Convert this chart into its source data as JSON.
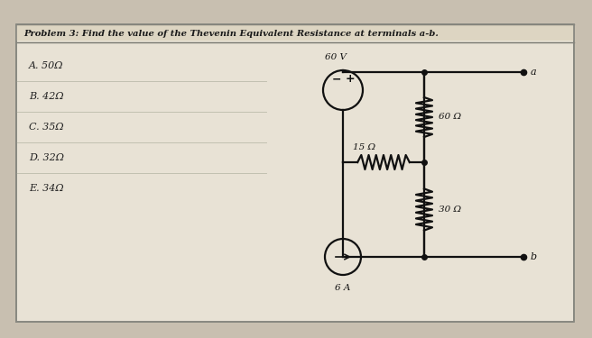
{
  "title": "Problem 3: Find the value of the Thevenin Equivalent Resistance at terminals a-b.",
  "choices": [
    "A. 50Ω",
    "B. 42Ω",
    "C. 35Ω",
    "D. 32Ω",
    "E. 34Ω"
  ],
  "bg_color": "#c8bfb0",
  "panel_color": "#ddd5c5",
  "circuit": {
    "voltage_source_60V": "60 V",
    "current_source_6A": "6 A",
    "R1": "60 Ω",
    "R2": "15 Ω",
    "R3": "30 Ω",
    "terminal_a": "a",
    "terminal_b": "b"
  },
  "line_color": "#111111",
  "title_color": "#222222",
  "choice_color": "#333333"
}
